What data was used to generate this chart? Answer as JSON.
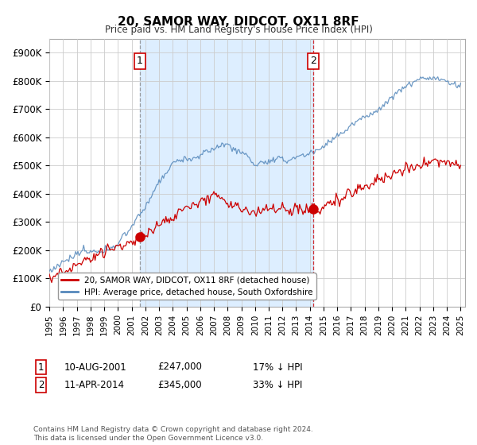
{
  "title": "20, SAMOR WAY, DIDCOT, OX11 8RF",
  "subtitle": "Price paid vs. HM Land Registry's House Price Index (HPI)",
  "ylabel_ticks": [
    "£0",
    "£100K",
    "£200K",
    "£300K",
    "£400K",
    "£500K",
    "£600K",
    "£700K",
    "£800K",
    "£900K"
  ],
  "ytick_values": [
    0,
    100000,
    200000,
    300000,
    400000,
    500000,
    600000,
    700000,
    800000,
    900000
  ],
  "ylim": [
    0,
    950000
  ],
  "xlim_start": 1995.0,
  "xlim_end": 2025.3,
  "purchase1_x": 2001.6,
  "purchase1_y": 247000,
  "purchase1_label": "1",
  "purchase2_x": 2014.27,
  "purchase2_y": 345000,
  "purchase2_label": "2",
  "red_color": "#cc0000",
  "blue_color": "#5588bb",
  "shade_color": "#ddeeff",
  "legend_entry1": "20, SAMOR WAY, DIDCOT, OX11 8RF (detached house)",
  "legend_entry2": "HPI: Average price, detached house, South Oxfordshire",
  "annotation1_date": "10-AUG-2001",
  "annotation1_price": "£247,000",
  "annotation1_hpi": "17% ↓ HPI",
  "annotation2_date": "11-APR-2014",
  "annotation2_price": "£345,000",
  "annotation2_hpi": "33% ↓ HPI",
  "footnote": "Contains HM Land Registry data © Crown copyright and database right 2024.\nThis data is licensed under the Open Government Licence v3.0.",
  "background_color": "#ffffff",
  "grid_color": "#cccccc"
}
